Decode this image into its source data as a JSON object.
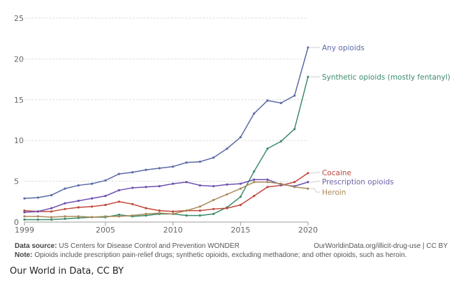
{
  "chart_data": {
    "type": "line",
    "title": "",
    "xlabel": "",
    "ylabel": "",
    "xlim": [
      1999,
      2020
    ],
    "ylim": [
      0,
      25
    ],
    "grid": true,
    "y_ticks": [
      0,
      5,
      10,
      15,
      20,
      25
    ],
    "x_ticks": [
      1999,
      2005,
      2010,
      2015,
      2020
    ],
    "legend_placement": "right-inline",
    "x": [
      1999,
      2000,
      2001,
      2002,
      2003,
      2004,
      2005,
      2006,
      2007,
      2008,
      2009,
      2010,
      2011,
      2012,
      2013,
      2014,
      2015,
      2016,
      2017,
      2018,
      2019,
      2020
    ],
    "series": [
      {
        "name": "Any opioids",
        "color": "#5b6aa6",
        "values": [
          2.9,
          3.0,
          3.3,
          4.1,
          4.5,
          4.7,
          5.1,
          5.9,
          6.1,
          6.4,
          6.6,
          6.8,
          7.3,
          7.4,
          7.9,
          9.0,
          10.4,
          13.3,
          14.9,
          14.6,
          15.5,
          21.4
        ]
      },
      {
        "name": "Synthetic opioids (mostly fentanyl)",
        "color": "#3b8a6a",
        "values": [
          0.3,
          0.3,
          0.3,
          0.4,
          0.5,
          0.6,
          0.6,
          0.9,
          0.7,
          0.8,
          1.0,
          1.0,
          0.8,
          0.8,
          1.0,
          1.8,
          3.1,
          6.2,
          9.0,
          9.9,
          11.4,
          17.8
        ]
      },
      {
        "name": "Cocaine",
        "color": "#c0473a",
        "values": [
          1.4,
          1.3,
          1.3,
          1.6,
          1.8,
          1.9,
          2.1,
          2.5,
          2.2,
          1.7,
          1.4,
          1.3,
          1.4,
          1.4,
          1.6,
          1.7,
          2.1,
          3.2,
          4.3,
          4.5,
          4.9,
          6.0
        ]
      },
      {
        "name": "Prescription opioids",
        "color": "#6f4fb0",
        "values": [
          1.2,
          1.3,
          1.7,
          2.3,
          2.6,
          2.9,
          3.2,
          3.9,
          4.2,
          4.3,
          4.4,
          4.7,
          4.9,
          4.5,
          4.4,
          4.6,
          4.7,
          5.2,
          5.2,
          4.6,
          4.4,
          4.9
        ]
      },
      {
        "name": "Heroin",
        "color": "#a9895a",
        "values": [
          0.7,
          0.7,
          0.6,
          0.7,
          0.7,
          0.6,
          0.7,
          0.7,
          0.8,
          1.0,
          1.1,
          1.0,
          1.4,
          1.9,
          2.7,
          3.4,
          4.1,
          4.9,
          4.9,
          4.7,
          4.3,
          4.1
        ]
      }
    ],
    "label_colors": {
      "Any opioids": "#5b6aa6",
      "Synthetic opioids (mostly fentanyl)": "#3b8a6a",
      "Cocaine": "#c0473a",
      "Prescription opioids": "#6f5fa6",
      "Heroin": "#a9895a"
    }
  },
  "footer": {
    "source_label": "Data source:",
    "source_text": "US Centers for Disease Control and Prevention WONDER",
    "url_text": "OurWorldinData.org/illicit-drug-use | CC BY",
    "note_label": "Note:",
    "note_text": "Opioids include prescription pain-relief drugs; synthetic opioids, excluding methadone; and other opioids, such as heroin."
  },
  "caption": "Our World in Data, CC BY"
}
